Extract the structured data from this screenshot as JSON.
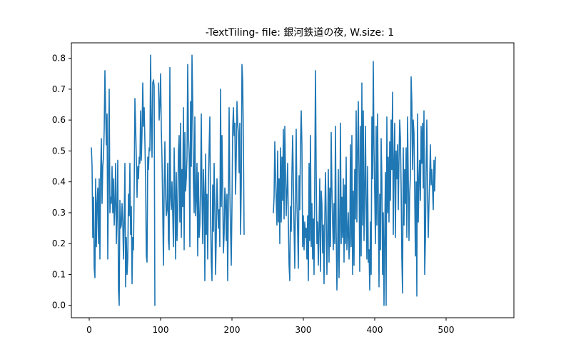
{
  "chart_data": {
    "type": "line",
    "title": "-TextTiling- file: 銀河鉄道の夜, W.size: 1",
    "xlabel": "",
    "ylabel": "",
    "xlim": [
      -25,
      595
    ],
    "ylim": [
      -0.04,
      0.85
    ],
    "xticks": [
      0,
      100,
      200,
      300,
      400,
      500
    ],
    "yticks": [
      0.0,
      0.1,
      0.2,
      0.3,
      0.4,
      0.5,
      0.6,
      0.7,
      0.8
    ],
    "grid": false,
    "colors": {
      "series": "#1f77b4"
    },
    "series": [
      {
        "x_start": 3,
        "x_step": 1,
        "note_gaps_are_null": true,
        "y": [
          0.51,
          0.45,
          0.22,
          0.35,
          0.12,
          0.09,
          0.41,
          0.19,
          0.33,
          0.38,
          0.2,
          0.41,
          0.15,
          0.43,
          0.54,
          0.33,
          0.45,
          0.48,
          0.57,
          0.76,
          0.63,
          0.52,
          0.62,
          0.15,
          0.42,
          0.7,
          0.3,
          0.35,
          0.33,
          0.45,
          0.3,
          0.41,
          0.26,
          0.33,
          0.46,
          0.2,
          0.3,
          0.47,
          0.05,
          0.0,
          0.34,
          0.25,
          0.26,
          0.33,
          0.27,
          0.15,
          0.28,
          0.46,
          0.06,
          0.22,
          0.1,
          0.15,
          0.36,
          0.29,
          0.46,
          0.23,
          0.32,
          0.07,
          0.22,
          0.18,
          0.38,
          0.67,
          0.58,
          0.48,
          0.35,
          0.45,
          0.41,
          0.48,
          0.46,
          0.63,
          0.47,
          0.56,
          0.72,
          0.58,
          0.64,
          0.53,
          0.41,
          0.16,
          0.14,
          0.48,
          0.44,
          0.51,
          0.5,
          0.81,
          0.58,
          0.48,
          0.72,
          0.73,
          0.71,
          0.0,
          null,
          null,
          null,
          null,
          0.72,
          0.6,
          0.65,
          0.75,
          0.57,
          0.47,
          0.31,
          0.13,
          0.38,
          0.53,
          0.36,
          0.29,
          0.31,
          0.46,
          0.21,
          0.18,
          0.77,
          0.35,
          0.31,
          0.4,
          0.3,
          0.19,
          0.51,
          0.38,
          0.15,
          0.43,
          0.21,
          0.3,
          0.5,
          0.55,
          0.27,
          0.59,
          0.22,
          0.44,
          0.32,
          0.64,
          0.18,
          0.56,
          0.37,
          0.41,
          0.48,
          0.78,
          0.55,
          0.49,
          0.19,
          0.66,
          0.45,
          0.81,
          0.66,
          0.4,
          0.3,
          0.61,
          0.29,
          0.35,
          0.46,
          0.16,
          0.43,
          0.22,
          0.26,
          0.38,
          0.62,
          0.36,
          0.2,
          0.44,
          0.36,
          0.08,
          0.49,
          0.23,
          0.36,
          0.15,
          0.4,
          0.51,
          0.61,
          0.29,
          0.14,
          0.08,
          0.39,
          0.24,
          0.46,
          0.33,
          0.1,
          0.22,
          0.41,
          0.33,
          0.25,
          0.31,
          0.19,
          0.7,
          0.32,
          0.55,
          0.38,
          0.17,
          0.23,
          0.38,
          0.34,
          0.21,
          0.36,
          0.08,
          0.34,
          0.64,
          0.37,
          0.25,
          0.13,
          0.32,
          0.57,
          0.64,
          0.55,
          0.59,
          0.36,
          0.48,
          0.66,
          0.59,
          0.56,
          0.43,
          0.59,
          0.23,
          0.38,
          0.78,
          0.73,
          0.54,
          0.23
        ]
      },
      {
        "x_start": 258,
        "x_step": 1,
        "y": [
          0.3,
          0.35,
          0.53,
          0.42,
          0.34,
          0.26,
          0.5,
          0.27,
          0.41,
          0.2,
          0.51,
          0.27,
          0.48,
          0.34,
          0.57,
          0.28,
          0.58,
          0.43,
          0.29,
          0.37,
          0.46,
          0.27,
          0.13,
          0.08,
          0.32,
          0.24,
          0.43,
          0.55,
          0.4,
          0.25,
          0.12,
          0.36,
          0.57,
          0.33,
          0.24,
          0.12,
          0.42,
          0.31,
          0.52,
          0.63,
          0.52,
          0.19,
          0.29,
          0.18,
          0.27,
          0.22,
          0.25,
          0.15,
          0.29,
          0.08,
          0.46,
          0.21,
          0.55,
          0.19,
          0.33,
          0.15,
          0.28,
          0.1,
          0.42,
          0.76,
          0.43,
          0.2,
          0.27,
          0.13,
          0.25,
          0.41,
          0.11,
          0.37,
          0.33,
          0.17,
          0.26,
          0.07,
          0.27,
          0.43,
          0.29,
          0.1,
          0.22,
          0.44,
          0.14,
          0.38,
          0.19,
          0.56,
          0.38,
          0.27,
          0.18,
          0.33,
          0.2,
          0.58,
          0.24,
          0.05,
          0.16,
          0.44,
          0.09,
          0.25,
          0.59,
          0.2,
          0.35,
          0.22,
          0.41,
          0.14,
          0.39,
          0.2,
          0.48,
          0.18,
          0.23,
          0.3,
          0.15,
          0.2,
          0.52,
          0.19,
          0.55,
          0.1,
          0.37,
          0.13,
          0.44,
          0.28,
          0.63,
          0.27,
          0.49,
          0.66,
          0.43,
          0.11,
          0.58,
          0.16,
          0.72,
          0.26,
          0.63,
          0.21,
          0.36,
          0.58,
          0.33,
          0.15,
          0.45,
          0.14,
          0.18,
          0.05,
          0.27,
          0.1,
          0.61,
          0.41,
          0.79,
          0.51,
          0.36,
          0.2,
          0.58,
          0.26,
          0.62,
          0.34,
          0.06,
          0.36,
          0.18,
          0.54,
          0.41,
          0.1,
          0.3,
          0.0,
          0.22,
          0.43,
          0.0,
          0.61,
          0.3,
          0.48,
          0.27,
          0.53,
          0.34,
          0.6,
          0.44,
          0.69,
          0.23,
          0.46,
          0.59,
          0.22,
          0.5,
          0.41,
          0.52,
          0.31,
          0.47,
          0.6,
          0.54,
          0.38,
          0.15,
          0.04,
          0.51,
          0.26,
          0.44,
          0.33,
          0.51,
          0.22,
          0.61,
          0.41,
          0.21,
          0.36,
          0.42,
          0.74,
          0.66,
          0.44,
          0.6,
          0.56,
          0.36,
          0.16,
          0.4,
          0.03,
          0.62,
          0.27,
          0.4,
          0.47,
          0.34,
          0.58,
          0.46,
          0.59,
          0.38,
          0.63,
          0.1,
          0.21,
          0.45,
          0.6,
          0.36,
          0.22,
          0.33,
          0.41,
          0.52,
          0.39,
          0.44,
          0.38,
          0.31,
          0.47,
          0.37,
          0.48
        ]
      }
    ]
  }
}
